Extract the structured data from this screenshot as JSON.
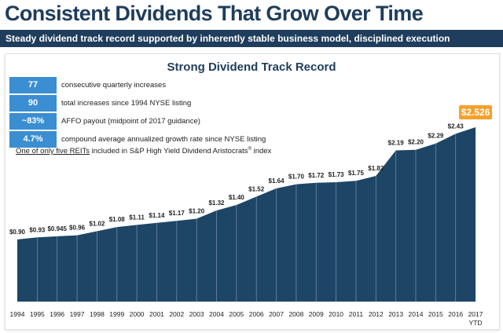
{
  "header": {
    "title": "Consistent Dividends That Grow Over Time",
    "subtitle": "Steady dividend track record supported by inherently stable business model, disciplined execution"
  },
  "stats": [
    {
      "value": "77",
      "text": "consecutive quarterly increases"
    },
    {
      "value": "90",
      "text": "total increases since 1994 NYSE listing"
    },
    {
      "value": "~83%",
      "text": "AFFO payout (midpoint of 2017 guidance)"
    },
    {
      "value": "4.7%",
      "text": "compound average annualized growth rate since NYSE listing"
    }
  ],
  "footnote": {
    "underlined": "One of only five REITs",
    "middle": " included in S&P High Yield Dividend Aristocrats",
    "superscript": "®",
    "end": " index"
  },
  "colors": {
    "title": "#1f3d5c",
    "band": "#1f3d5c",
    "area": "#1d4566",
    "badge": "#3a8ed1",
    "highlight": "#f5a12c"
  },
  "chart_data": {
    "type": "area",
    "title": "Strong Dividend Track Record",
    "x": [
      "1994",
      "1995",
      "1996",
      "1997",
      "1998",
      "1999",
      "2000",
      "2001",
      "2002",
      "2003",
      "2004",
      "2005",
      "2006",
      "2007",
      "2008",
      "2009",
      "2010",
      "2011",
      "2012",
      "2013",
      "2014",
      "2015",
      "2016",
      "2017"
    ],
    "x_sublabel": {
      "2017": "YTD"
    },
    "values": [
      0.9,
      0.93,
      0.945,
      0.96,
      1.02,
      1.08,
      1.11,
      1.14,
      1.17,
      1.2,
      1.32,
      1.4,
      1.52,
      1.64,
      1.7,
      1.72,
      1.73,
      1.75,
      1.82,
      2.19,
      2.2,
      2.29,
      2.43,
      2.526
    ],
    "data_labels": [
      "$0.90",
      "$0.93",
      "$0.945",
      "$0.96",
      "$1.02",
      "$1.08",
      "$1.11",
      "$1.14",
      "$1.17",
      "$1.20",
      "$1.32",
      "$1.40",
      "$1.52",
      "$1.64",
      "$1.70",
      "$1.72",
      "$1.73",
      "$1.75",
      "$1.82",
      "$2.19",
      "$2.20",
      "$2.29",
      "$2.43",
      "$2.526"
    ],
    "highlight_index": 23,
    "ylim": [
      0,
      2.6
    ],
    "grid": false,
    "legend": "none"
  }
}
